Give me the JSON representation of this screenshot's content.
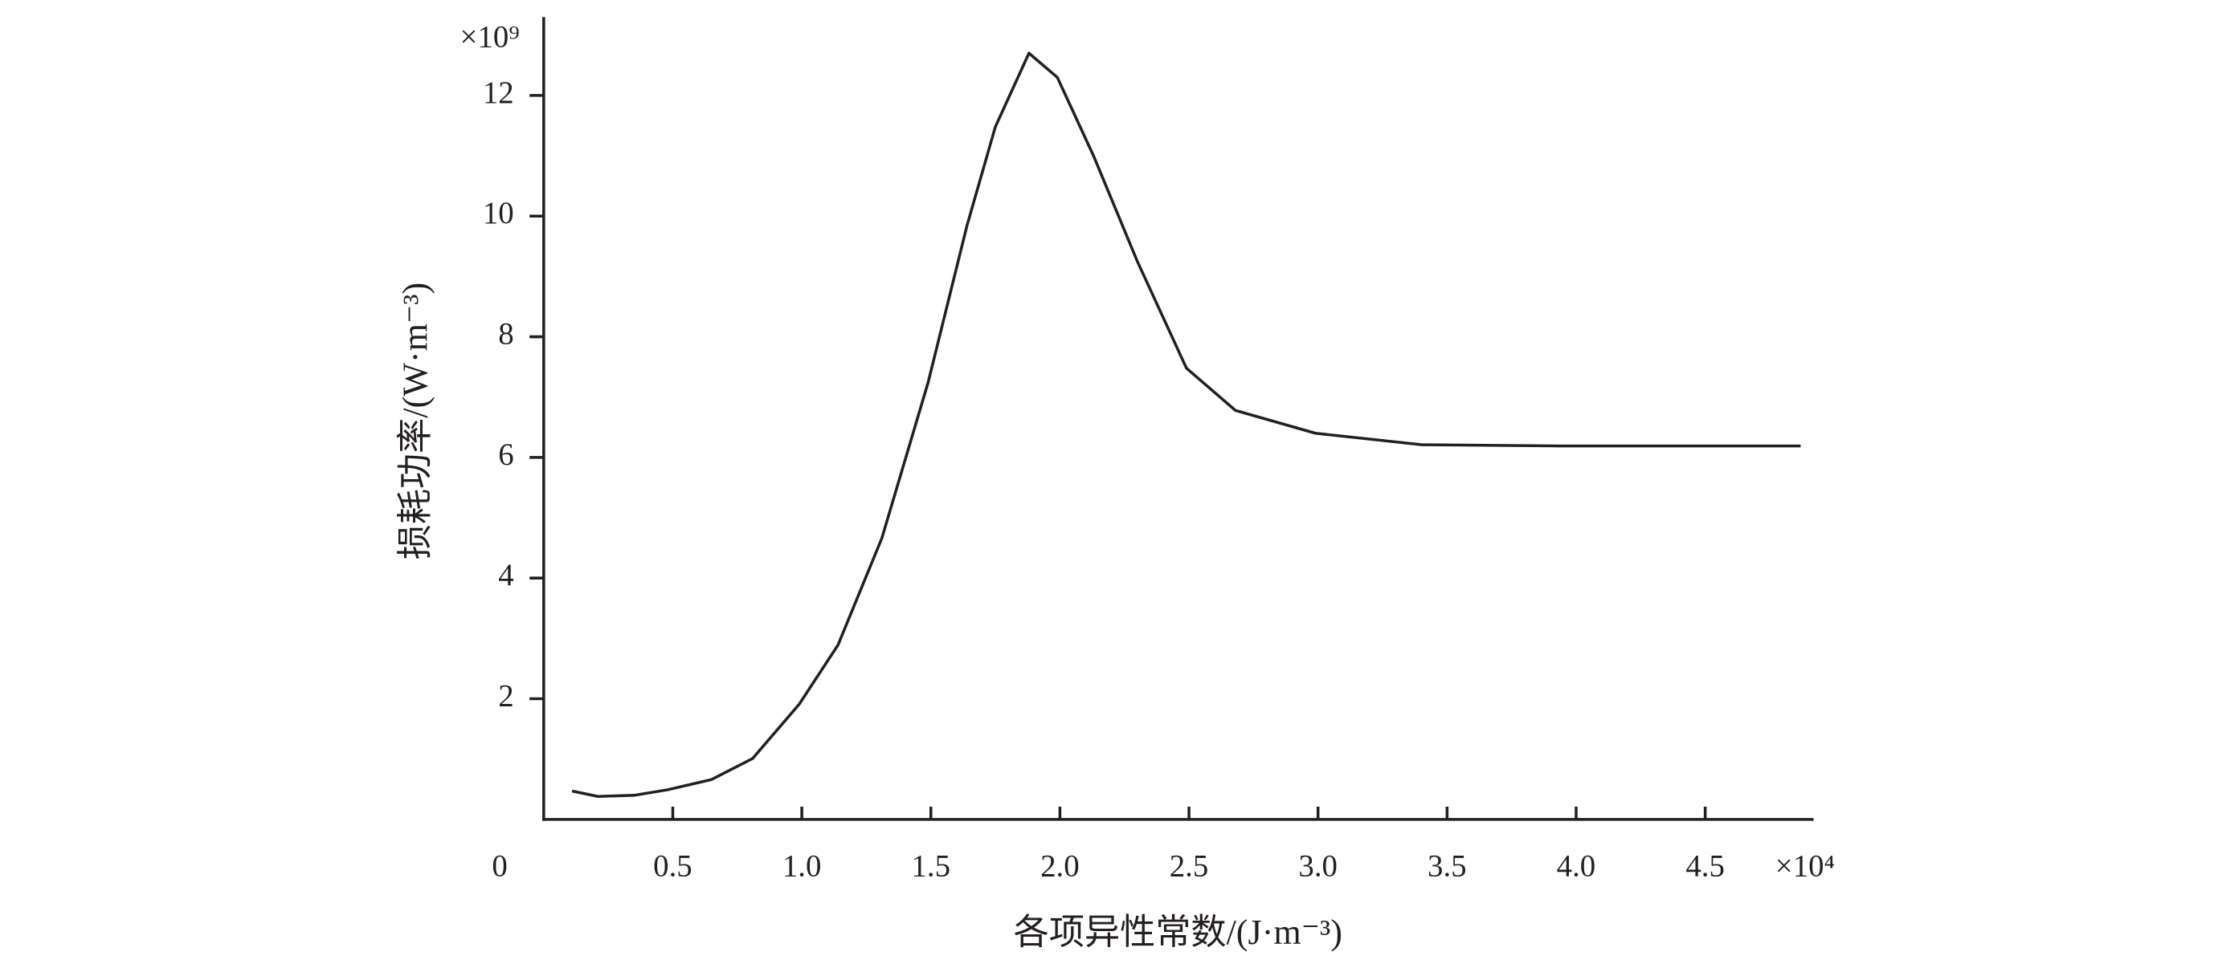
{
  "chart_data": {
    "type": "line",
    "xlabel": "各项异性常数/(J·m⁻³)",
    "ylabel": "损耗功率/(W·m⁻³)",
    "x_multiplier": "×10⁴",
    "y_multiplier": "×10⁹",
    "x": [
      0.11,
      0.21,
      0.35,
      0.48,
      0.65,
      0.81,
      0.99,
      1.14,
      1.31,
      1.49,
      1.64,
      1.75,
      1.88,
      1.99,
      2.13,
      2.3,
      2.49,
      2.68,
      2.99,
      3.4,
      3.95,
      4.87
    ],
    "series": [
      {
        "color": "#231f20",
        "values": [
          0.47,
          0.38,
          0.4,
          0.49,
          0.66,
          1.01,
          1.91,
          2.89,
          4.66,
          7.25,
          9.84,
          11.48,
          12.7,
          12.3,
          11.0,
          9.25,
          7.48,
          6.78,
          6.4,
          6.21,
          6.19,
          6.19
        ]
      }
    ],
    "xlim": [
      0,
      4.92
    ],
    "ylim": [
      0,
      13.3
    ],
    "xticks": [
      0,
      0.5,
      {
        "value": 1,
        "label": "1.0"
      },
      1.5,
      {
        "value": 2,
        "label": "2.0"
      },
      2.5,
      {
        "value": 3,
        "label": "3.0"
      },
      3.5,
      {
        "value": 4,
        "label": "4.0"
      },
      4.5
    ],
    "yticks": [
      2,
      4,
      6,
      8,
      10,
      12
    ]
  }
}
